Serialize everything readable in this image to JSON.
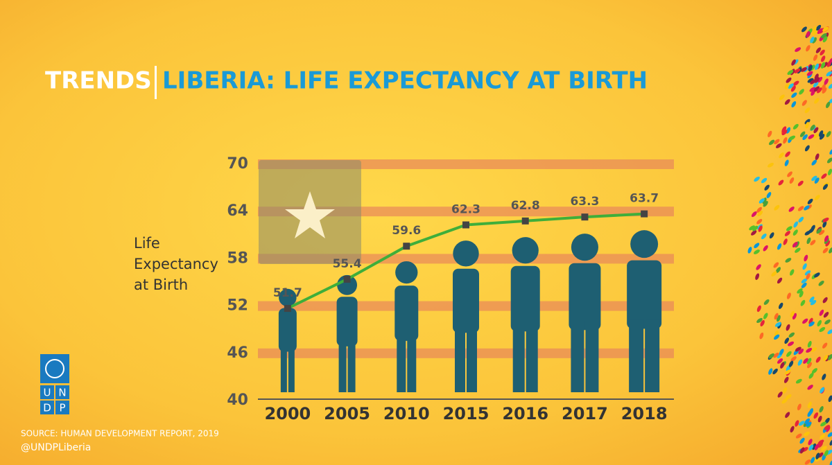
{
  "chart_data": {
    "type": "line",
    "title_prefix": "TRENDS",
    "title": "LIBERIA: LIFE EXPECTANCY AT BIRTH",
    "y_label": [
      "Life",
      "Expectancy",
      "at Birth"
    ],
    "categories": [
      "2000",
      "2005",
      "2010",
      "2015",
      "2016",
      "2017",
      "2018"
    ],
    "series": [
      {
        "name": "Life Expectancy at Birth",
        "color": "#3fae3a",
        "values": [
          51.7,
          55.4,
          59.6,
          62.3,
          62.8,
          63.3,
          63.7
        ]
      }
    ],
    "ylim": [
      40,
      70
    ],
    "yticks": [
      40,
      46,
      52,
      58,
      64,
      70
    ],
    "grid": true,
    "source": "SOURCE: HUMAN DEVELOPMENT REPORT, 2019",
    "handle": "@UNDPLiberia",
    "logo_letters": [
      "U",
      "N",
      "D",
      "P"
    ]
  }
}
